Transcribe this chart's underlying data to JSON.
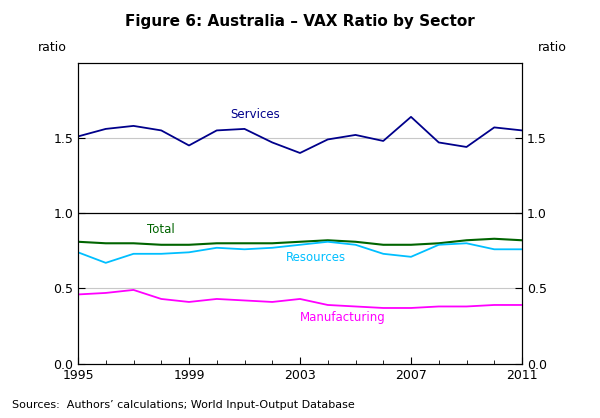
{
  "title": "Figure 6: Australia – VAX Ratio by Sector",
  "years": [
    1995,
    1996,
    1997,
    1998,
    1999,
    2000,
    2001,
    2002,
    2003,
    2004,
    2005,
    2006,
    2007,
    2008,
    2009,
    2010,
    2011
  ],
  "services": [
    1.51,
    1.56,
    1.58,
    1.55,
    1.45,
    1.55,
    1.56,
    1.47,
    1.4,
    1.49,
    1.52,
    1.48,
    1.64,
    1.47,
    1.44,
    1.57,
    1.55
  ],
  "total": [
    0.81,
    0.8,
    0.8,
    0.79,
    0.79,
    0.8,
    0.8,
    0.8,
    0.81,
    0.82,
    0.81,
    0.79,
    0.79,
    0.8,
    0.82,
    0.83,
    0.82
  ],
  "resources": [
    0.74,
    0.67,
    0.73,
    0.73,
    0.74,
    0.77,
    0.76,
    0.77,
    0.79,
    0.81,
    0.79,
    0.73,
    0.71,
    0.79,
    0.8,
    0.76,
    0.76
  ],
  "manufacturing": [
    0.46,
    0.47,
    0.49,
    0.43,
    0.41,
    0.43,
    0.42,
    0.41,
    0.43,
    0.39,
    0.38,
    0.37,
    0.37,
    0.38,
    0.38,
    0.39,
    0.39
  ],
  "services_color": "#00008B",
  "total_color": "#006400",
  "resources_color": "#00BFFF",
  "manufacturing_color": "#FF00FF",
  "grid_color_light": "#C8C8C8",
  "hline_1_color": "#000000",
  "ylim": [
    0.0,
    2.0
  ],
  "yticks": [
    0.0,
    0.5,
    1.0,
    1.5
  ],
  "xticks": [
    1995,
    1999,
    2003,
    2007,
    2011
  ],
  "xlabel_source": "Sources:  Authors’ calculations; World Input-Output Database",
  "ylabel": "ratio",
  "background_color": "#FFFFFF"
}
